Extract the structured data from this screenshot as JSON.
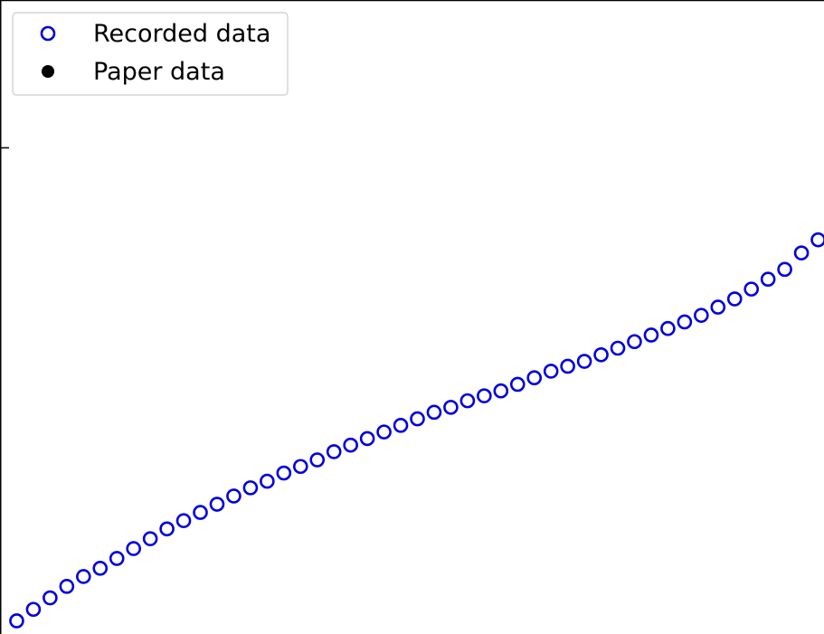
{
  "chart_data": {
    "type": "scatter",
    "title": "",
    "xlabel": "",
    "ylabel": "",
    "xlim": [
      0,
      49.35
    ],
    "ylim": [
      -0.1,
      38.5
    ],
    "grid": false,
    "legend_position": "top-left",
    "y_ticks": [
      {
        "value": 29.5,
        "label": ""
      }
    ],
    "series": [
      {
        "name": "Recorded data",
        "marker": "open-circle",
        "color": "#0000dd",
        "x": [
          1,
          2,
          3,
          4,
          5,
          6,
          7,
          8,
          9,
          10,
          11,
          12,
          13,
          14,
          15,
          16,
          17,
          18,
          19,
          20,
          21,
          22,
          23,
          24,
          25,
          26,
          27,
          28,
          29,
          30,
          31,
          32,
          33,
          34,
          35,
          36,
          37,
          38,
          39,
          40,
          41,
          42,
          43,
          44,
          45,
          46,
          47,
          48,
          49
        ],
        "y": [
          0.7,
          1.4,
          2.1,
          2.8,
          3.4,
          3.9,
          4.5,
          5.1,
          5.7,
          6.3,
          6.8,
          7.3,
          7.8,
          8.3,
          8.8,
          9.2,
          9.7,
          10.1,
          10.5,
          11.0,
          11.4,
          11.8,
          12.2,
          12.6,
          13.0,
          13.4,
          13.7,
          14.1,
          14.4,
          14.7,
          15.1,
          15.5,
          15.9,
          16.2,
          16.5,
          16.9,
          17.3,
          17.7,
          18.1,
          18.5,
          18.9,
          19.3,
          19.8,
          20.3,
          20.9,
          21.5,
          22.1,
          23.1,
          23.9
        ]
      },
      {
        "name": "Paper data",
        "marker": "filled-circle",
        "color": "#000000",
        "x": [],
        "y": []
      }
    ]
  }
}
